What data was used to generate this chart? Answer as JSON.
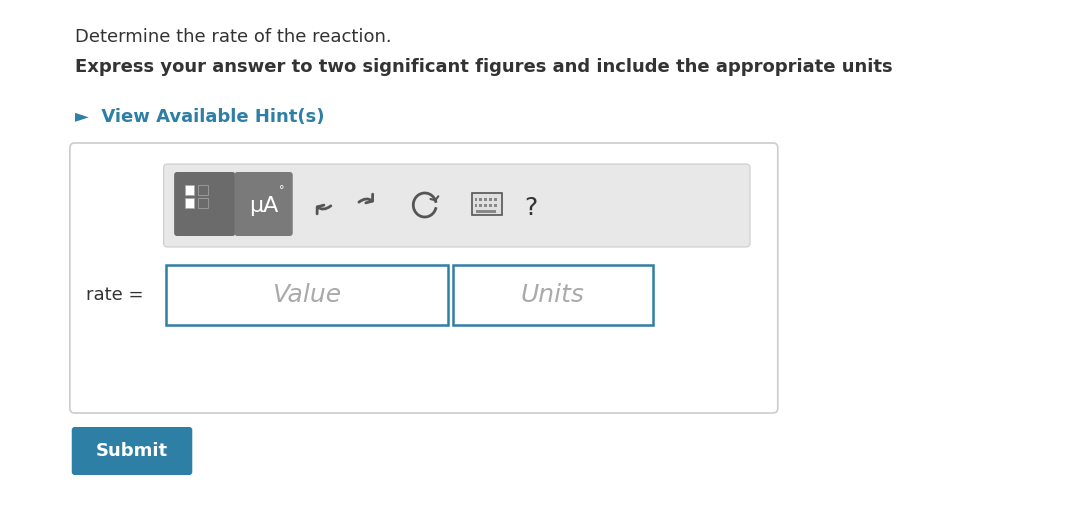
{
  "bg_color": "#f5f5f5",
  "page_bg": "#ffffff",
  "title1": "Determine the rate of the reaction.",
  "title2": "Express your answer to two significant figures and include the appropriate units",
  "hint_text": "►  View Available Hint(s)",
  "hint_color": "#2e7fa5",
  "rate_label": "rate =",
  "value_placeholder": "Value",
  "units_placeholder": "Units",
  "submit_text": "Submit",
  "submit_bg": "#2e7fa5",
  "submit_text_color": "#ffffff",
  "toolbar_bg": "#e8e8e8",
  "box_border": "#2e7fa5",
  "input_box_bg": "#ffffff",
  "outer_box_bg": "#ffffff",
  "outer_box_border": "#cccccc",
  "icon_btn1_bg": "#6b6b6b",
  "icon_btn2_bg": "#7a7a7a",
  "question_mark_color": "#333333",
  "mu_a_text": "μA",
  "symbol_color": "#333333",
  "title1_fontsize": 13,
  "title2_fontsize": 13,
  "hint_fontsize": 13,
  "rate_fontsize": 13,
  "value_fontsize": 18,
  "submit_fontsize": 13
}
